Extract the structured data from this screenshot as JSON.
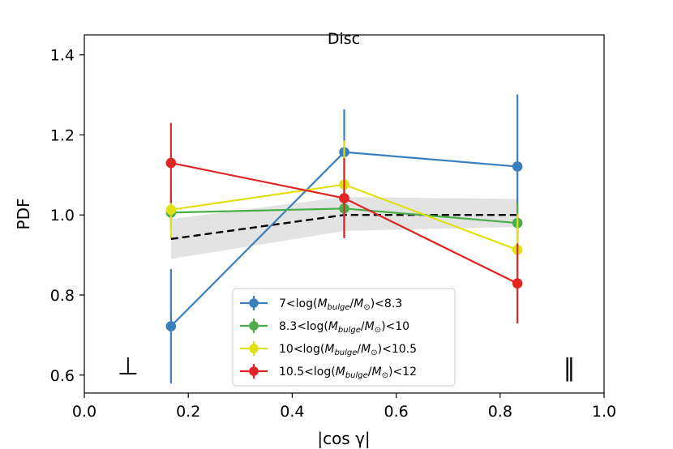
{
  "chart_data": {
    "type": "line",
    "title": "Disc",
    "xlabel": "|cos γ|",
    "ylabel": "PDF",
    "xlim": [
      0.0,
      1.0
    ],
    "ylim": [
      0.555,
      1.45
    ],
    "xticks": [
      "0.0",
      "0.2",
      "0.4",
      "0.6",
      "0.8",
      "1.0"
    ],
    "yticks": [
      "0.6",
      "0.8",
      "1.0",
      "1.2",
      "1.4"
    ],
    "x": [
      0.1667,
      0.5,
      0.8333
    ],
    "grid": false,
    "legend_position": "lower-center",
    "series": [
      {
        "name": "7<log(M_bulge/M⊙)<8.3",
        "label_parts": {
          "pre": "7<log(",
          "m1": "M",
          "sub": "bulge",
          "slash": "/",
          "m2": "M",
          "odot": "⊙",
          "post": ")<8.3"
        },
        "color": "#3a7fbd",
        "y": [
          0.722,
          1.157,
          1.121
        ],
        "yerr_low": [
          0.143,
          0.212,
          0.18
        ],
        "yerr_high": [
          0.143,
          0.107,
          0.18
        ]
      },
      {
        "name": "8.3<log(M_bulge/M⊙)<10",
        "label_parts": {
          "pre": "8.3<log(",
          "m1": "M",
          "sub": "bulge",
          "slash": "/",
          "m2": "M",
          "odot": "⊙",
          "post": ")<10"
        },
        "color": "#49ad49",
        "y": [
          1.006,
          1.016,
          0.98
        ],
        "yerr_low": [
          0.04,
          0.05,
          0.05
        ],
        "yerr_high": [
          0.04,
          0.05,
          0.05
        ]
      },
      {
        "name": "10<log(M_bulge/M⊙)<10.5",
        "label_parts": {
          "pre": "10<log(",
          "m1": "M",
          "sub": "bulge",
          "slash": "/",
          "m2": "M",
          "odot": "⊙",
          "post": ")<10.5"
        },
        "color": "#e0e012",
        "y": [
          1.013,
          1.076,
          0.913
        ],
        "yerr_low": [
          0.07,
          0.11,
          0.09
        ],
        "yerr_high": [
          0.07,
          0.11,
          0.09
        ]
      },
      {
        "name": "10.5<log(M_bulge/M⊙)<12",
        "label_parts": {
          "pre": "10.5<log(",
          "m1": "M",
          "sub": "bulge",
          "slash": "/",
          "m2": "M",
          "odot": "⊙",
          "post": ")<12"
        },
        "color": "#e12424",
        "y": [
          1.13,
          1.042,
          0.829
        ],
        "yerr_low": [
          0.1,
          0.1,
          0.1
        ],
        "yerr_high": [
          0.1,
          0.1,
          0.1
        ]
      }
    ],
    "reference_line": {
      "color": "#000000",
      "x": [
        0.1667,
        0.5,
        0.8333
      ],
      "y": [
        0.94,
        1.0,
        1.0
      ],
      "band_low": [
        0.89,
        0.96,
        0.97
      ],
      "band_high": [
        0.99,
        1.045,
        1.04
      ],
      "band_color": "#e0e0e0"
    },
    "annotations": {
      "perpendicular": "⊥",
      "parallel": "∥"
    }
  }
}
